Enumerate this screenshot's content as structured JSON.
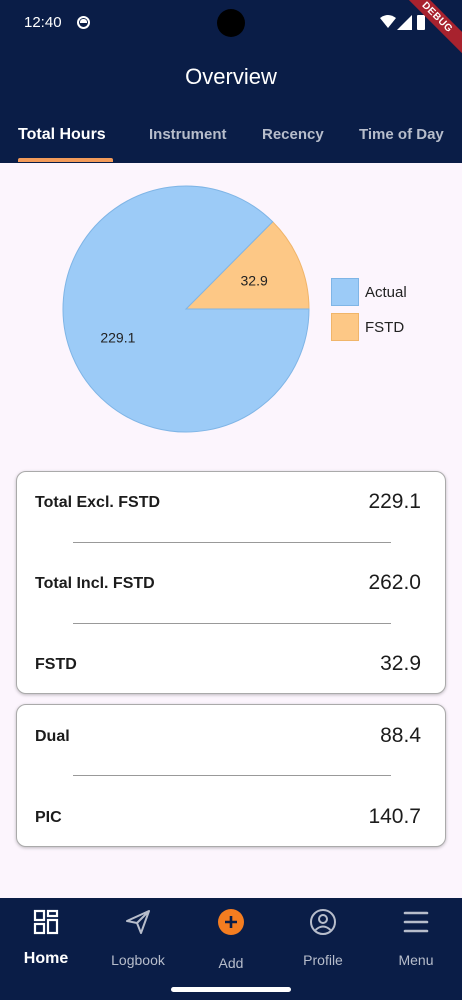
{
  "status_bar": {
    "time": "12:40",
    "debug_banner": "DEBUG"
  },
  "header": {
    "title": "Overview"
  },
  "tabs": [
    {
      "label": "Total Hours",
      "active": true
    },
    {
      "label": "Instrument",
      "active": false
    },
    {
      "label": "Recency",
      "active": false
    },
    {
      "label": "Time of Day",
      "active": false
    }
  ],
  "chart_data": {
    "type": "pie",
    "categories": [
      "Actual",
      "FSTD"
    ],
    "values": [
      229.1,
      32.9
    ],
    "colors": [
      "#9ccbf7",
      "#fdc886"
    ],
    "legend_position": "right"
  },
  "summary_card": {
    "rows": [
      {
        "label": "Total Excl. FSTD",
        "value": "229.1"
      },
      {
        "label": "Total Incl. FSTD",
        "value": "262.0"
      },
      {
        "label": "FSTD",
        "value": "32.9"
      }
    ]
  },
  "role_card": {
    "rows": [
      {
        "label": "Dual",
        "value": "88.4"
      },
      {
        "label": "PIC",
        "value": "140.7"
      }
    ]
  },
  "bottom_nav": [
    {
      "label": "Home",
      "icon": "dashboard-icon",
      "active": true
    },
    {
      "label": "Logbook",
      "icon": "paper-plane-icon",
      "active": false
    },
    {
      "label": "Add",
      "icon": "add-circle-icon",
      "active": false
    },
    {
      "label": "Profile",
      "icon": "profile-icon",
      "active": false
    },
    {
      "label": "Menu",
      "icon": "menu-icon",
      "active": false
    }
  ],
  "colors": {
    "primary": "#0a1d47",
    "accent": "#f39b5a",
    "background": "#fcf5fd"
  }
}
